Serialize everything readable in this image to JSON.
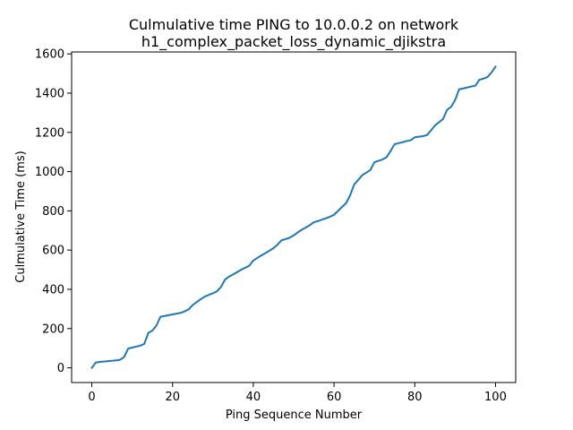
{
  "chart_data": {
    "type": "line",
    "title_lines": [
      "Culmulative time PING to 10.0.0.2 on network",
      "h1_complex_packet_loss_dynamic_djikstra"
    ],
    "xlabel": "Ping Sequence Number",
    "ylabel": "Culmulative Time (ms)",
    "xlim": [
      -5,
      105
    ],
    "ylim": [
      -75,
      1610
    ],
    "xticks": [
      0,
      20,
      40,
      60,
      80,
      100
    ],
    "yticks": [
      0,
      200,
      400,
      600,
      800,
      1000,
      1200,
      1400,
      1600
    ],
    "grid": false,
    "series": [
      {
        "color": "#1f77b4",
        "x": [
          0,
          1,
          2,
          3,
          4,
          5,
          6,
          7,
          8,
          9,
          10,
          11,
          12,
          13,
          14,
          15,
          16,
          17,
          18,
          19,
          20,
          21,
          22,
          23,
          24,
          25,
          26,
          27,
          28,
          29,
          30,
          31,
          32,
          33,
          34,
          35,
          36,
          37,
          38,
          39,
          40,
          41,
          42,
          43,
          44,
          45,
          46,
          47,
          48,
          49,
          50,
          51,
          52,
          53,
          54,
          55,
          56,
          57,
          58,
          59,
          60,
          61,
          62,
          63,
          64,
          65,
          66,
          67,
          68,
          69,
          70,
          71,
          72,
          73,
          74,
          75,
          76,
          77,
          78,
          79,
          80,
          81,
          82,
          83,
          84,
          85,
          86,
          87,
          88,
          89,
          90,
          91,
          92,
          93,
          94,
          95,
          96,
          97,
          98,
          99,
          100
        ],
        "y": [
          0,
          27,
          30,
          32,
          34,
          36,
          38,
          41,
          55,
          98,
          103,
          108,
          113,
          122,
          178,
          190,
          215,
          260,
          264,
          268,
          272,
          276,
          280,
          288,
          298,
          320,
          335,
          350,
          363,
          372,
          380,
          390,
          412,
          450,
          465,
          476,
          488,
          500,
          510,
          520,
          547,
          560,
          573,
          585,
          597,
          610,
          628,
          650,
          656,
          663,
          675,
          690,
          704,
          715,
          727,
          742,
          748,
          755,
          762,
          770,
          780,
          800,
          820,
          840,
          880,
          935,
          958,
          982,
          995,
          1008,
          1048,
          1055,
          1062,
          1073,
          1105,
          1140,
          1145,
          1150,
          1156,
          1160,
          1175,
          1178,
          1181,
          1186,
          1210,
          1235,
          1252,
          1268,
          1315,
          1330,
          1365,
          1420,
          1424,
          1429,
          1434,
          1438,
          1468,
          1474,
          1482,
          1505,
          1535
        ]
      }
    ]
  }
}
